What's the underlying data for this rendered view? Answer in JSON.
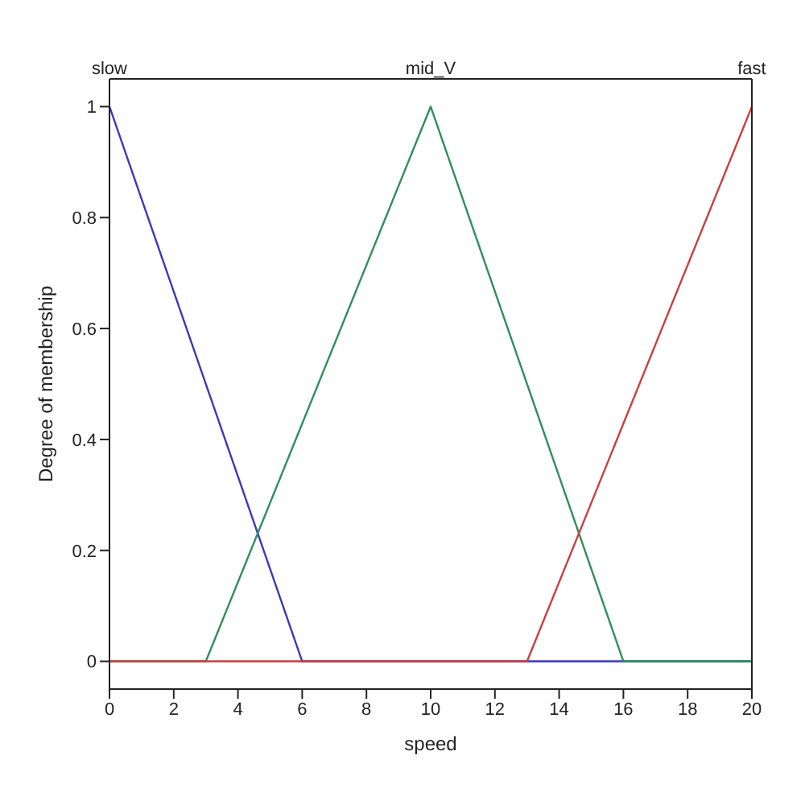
{
  "chart_data": {
    "type": "line",
    "xlabel": "speed",
    "ylabel": "Degree of membership",
    "xlim": [
      0,
      20
    ],
    "xticks": [
      0,
      2,
      4,
      6,
      8,
      10,
      12,
      14,
      16,
      18,
      20
    ],
    "ylim": [
      -0.05,
      1.05
    ],
    "yticks": [
      0,
      0.2,
      0.4,
      0.6,
      0.8,
      1
    ],
    "grid": false,
    "legend": false,
    "marker": "none",
    "line_style": "solid",
    "series": [
      {
        "name": "slow",
        "color": "#3a3ab8",
        "x": [
          0,
          6,
          20
        ],
        "values": [
          1,
          0,
          0
        ]
      },
      {
        "name": "mid_V",
        "color": "#2f8f5a",
        "x": [
          0,
          3,
          10,
          16,
          20
        ],
        "values": [
          0,
          0,
          1,
          0,
          0
        ]
      },
      {
        "name": "fast",
        "color": "#c84040",
        "x": [
          0,
          13,
          20
        ],
        "values": [
          0,
          0,
          1
        ]
      }
    ]
  }
}
